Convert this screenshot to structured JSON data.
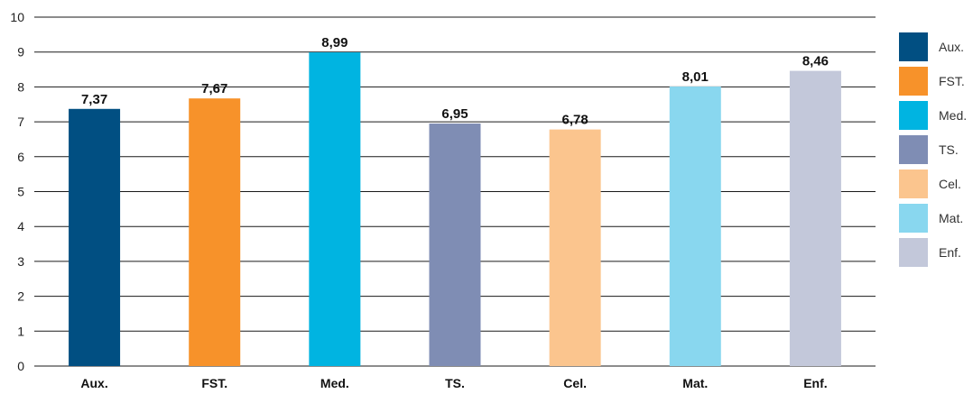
{
  "chart_data": {
    "type": "bar",
    "categories": [
      "Aux.",
      "FST.",
      "Med.",
      "TS.",
      "Cel.",
      "Mat.",
      "Enf."
    ],
    "values": [
      7.37,
      7.67,
      8.99,
      6.95,
      6.78,
      8.01,
      8.46
    ],
    "value_labels": [
      "7,37",
      "7,67",
      "8,99",
      "6,95",
      "6,78",
      "8,01",
      "8,46"
    ],
    "colors": [
      "#014F82",
      "#F7922A",
      "#00B4E1",
      "#7F8DB4",
      "#FBC58E",
      "#89D7EF",
      "#C3C8DA"
    ],
    "ylim": [
      0,
      10
    ],
    "yticks": [
      0,
      1,
      2,
      3,
      4,
      5,
      6,
      7,
      8,
      9,
      10
    ],
    "grid": true,
    "legend": {
      "position": "right",
      "entries": [
        "Aux.",
        "FST.",
        "Med.",
        "TS.",
        "Cel.",
        "Mat.",
        "Enf."
      ]
    }
  }
}
